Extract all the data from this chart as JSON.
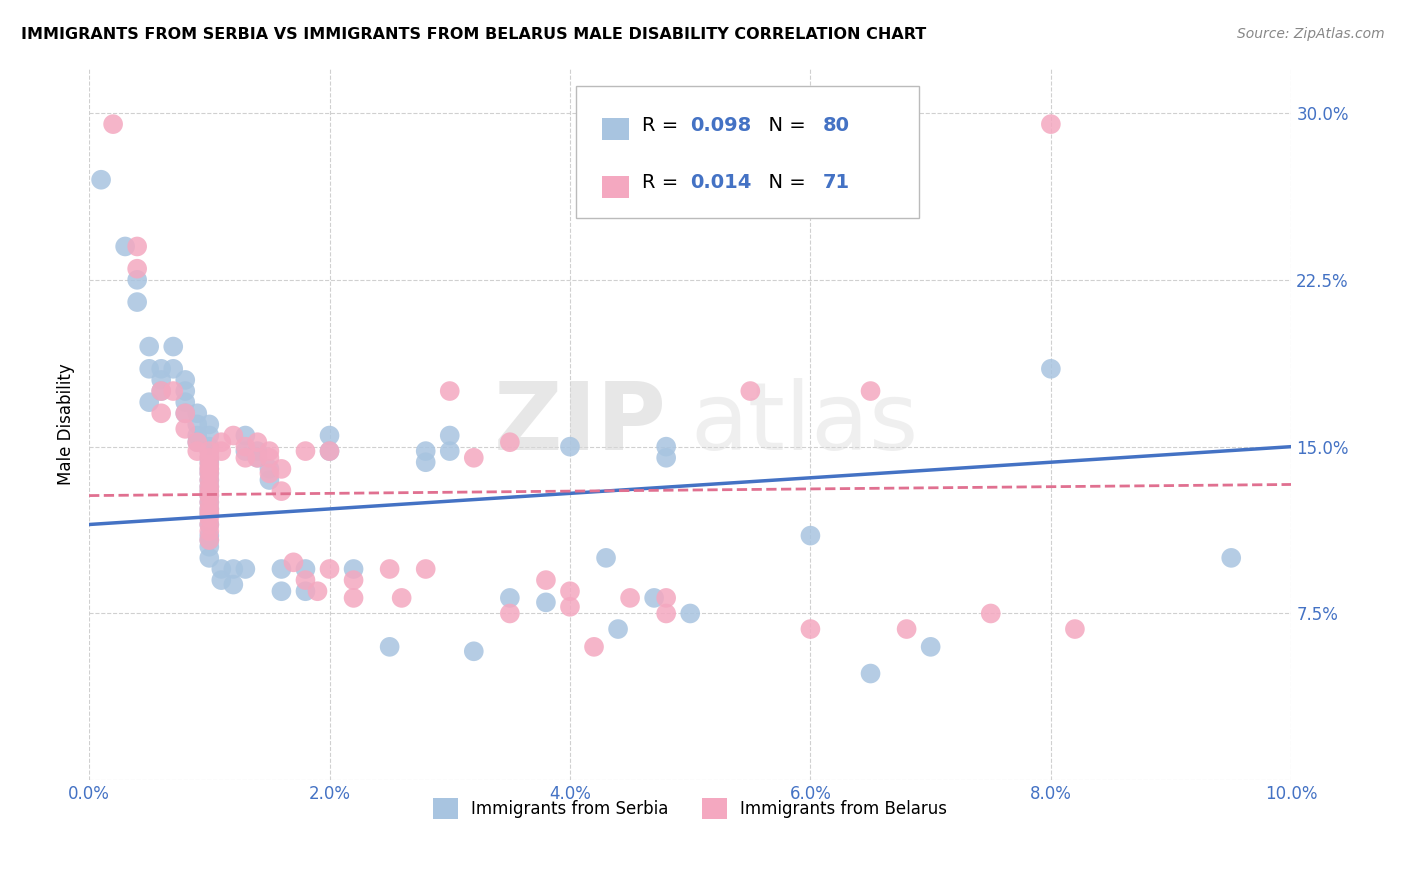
{
  "title": "IMMIGRANTS FROM SERBIA VS IMMIGRANTS FROM BELARUS MALE DISABILITY CORRELATION CHART",
  "source": "Source: ZipAtlas.com",
  "ylabel_label": "Male Disability",
  "legend_labels": [
    "Immigrants from Serbia",
    "Immigrants from Belarus"
  ],
  "serbia_R": "0.098",
  "serbia_N": "80",
  "belarus_R": "0.014",
  "belarus_N": "71",
  "serbia_color": "#a8c4e0",
  "belarus_color": "#f4a8c0",
  "serbia_line_color": "#4472c4",
  "belarus_line_color": "#e07090",
  "annotation_color": "#4472c4",
  "watermark_zip": "ZIP",
  "watermark_atlas": "atlas",
  "xlim": [
    0.0,
    0.1
  ],
  "ylim": [
    0.0,
    0.32
  ],
  "background_color": "#ffffff",
  "grid_color": "#d0d0d0",
  "serbia_points": [
    [
      0.001,
      0.27
    ],
    [
      0.003,
      0.24
    ],
    [
      0.004,
      0.225
    ],
    [
      0.004,
      0.215
    ],
    [
      0.005,
      0.195
    ],
    [
      0.005,
      0.185
    ],
    [
      0.005,
      0.17
    ],
    [
      0.006,
      0.185
    ],
    [
      0.006,
      0.18
    ],
    [
      0.006,
      0.175
    ],
    [
      0.007,
      0.195
    ],
    [
      0.007,
      0.185
    ],
    [
      0.008,
      0.18
    ],
    [
      0.008,
      0.175
    ],
    [
      0.008,
      0.17
    ],
    [
      0.008,
      0.165
    ],
    [
      0.009,
      0.165
    ],
    [
      0.009,
      0.16
    ],
    [
      0.009,
      0.155
    ],
    [
      0.009,
      0.152
    ],
    [
      0.01,
      0.16
    ],
    [
      0.01,
      0.155
    ],
    [
      0.01,
      0.15
    ],
    [
      0.01,
      0.148
    ],
    [
      0.01,
      0.145
    ],
    [
      0.01,
      0.143
    ],
    [
      0.01,
      0.14
    ],
    [
      0.01,
      0.138
    ],
    [
      0.01,
      0.135
    ],
    [
      0.01,
      0.132
    ],
    [
      0.01,
      0.13
    ],
    [
      0.01,
      0.128
    ],
    [
      0.01,
      0.125
    ],
    [
      0.01,
      0.122
    ],
    [
      0.01,
      0.12
    ],
    [
      0.01,
      0.115
    ],
    [
      0.01,
      0.11
    ],
    [
      0.01,
      0.108
    ],
    [
      0.01,
      0.105
    ],
    [
      0.01,
      0.1
    ],
    [
      0.011,
      0.095
    ],
    [
      0.011,
      0.09
    ],
    [
      0.012,
      0.095
    ],
    [
      0.012,
      0.088
    ],
    [
      0.013,
      0.155
    ],
    [
      0.013,
      0.148
    ],
    [
      0.013,
      0.095
    ],
    [
      0.014,
      0.148
    ],
    [
      0.014,
      0.145
    ],
    [
      0.015,
      0.14
    ],
    [
      0.015,
      0.135
    ],
    [
      0.016,
      0.095
    ],
    [
      0.016,
      0.085
    ],
    [
      0.018,
      0.095
    ],
    [
      0.018,
      0.085
    ],
    [
      0.02,
      0.155
    ],
    [
      0.02,
      0.148
    ],
    [
      0.022,
      0.095
    ],
    [
      0.025,
      0.06
    ],
    [
      0.028,
      0.148
    ],
    [
      0.028,
      0.143
    ],
    [
      0.03,
      0.155
    ],
    [
      0.03,
      0.148
    ],
    [
      0.032,
      0.058
    ],
    [
      0.035,
      0.082
    ],
    [
      0.038,
      0.08
    ],
    [
      0.04,
      0.15
    ],
    [
      0.043,
      0.1
    ],
    [
      0.044,
      0.068
    ],
    [
      0.047,
      0.082
    ],
    [
      0.048,
      0.15
    ],
    [
      0.048,
      0.145
    ],
    [
      0.05,
      0.075
    ],
    [
      0.06,
      0.11
    ],
    [
      0.065,
      0.048
    ],
    [
      0.07,
      0.06
    ],
    [
      0.08,
      0.185
    ],
    [
      0.095,
      0.1
    ]
  ],
  "belarus_points": [
    [
      0.002,
      0.295
    ],
    [
      0.004,
      0.24
    ],
    [
      0.004,
      0.23
    ],
    [
      0.006,
      0.175
    ],
    [
      0.006,
      0.165
    ],
    [
      0.007,
      0.175
    ],
    [
      0.008,
      0.165
    ],
    [
      0.008,
      0.158
    ],
    [
      0.009,
      0.152
    ],
    [
      0.009,
      0.148
    ],
    [
      0.01,
      0.148
    ],
    [
      0.01,
      0.145
    ],
    [
      0.01,
      0.142
    ],
    [
      0.01,
      0.14
    ],
    [
      0.01,
      0.138
    ],
    [
      0.01,
      0.135
    ],
    [
      0.01,
      0.132
    ],
    [
      0.01,
      0.13
    ],
    [
      0.01,
      0.128
    ],
    [
      0.01,
      0.125
    ],
    [
      0.01,
      0.122
    ],
    [
      0.01,
      0.12
    ],
    [
      0.01,
      0.118
    ],
    [
      0.01,
      0.115
    ],
    [
      0.01,
      0.112
    ],
    [
      0.01,
      0.108
    ],
    [
      0.011,
      0.152
    ],
    [
      0.011,
      0.148
    ],
    [
      0.012,
      0.155
    ],
    [
      0.013,
      0.15
    ],
    [
      0.013,
      0.145
    ],
    [
      0.014,
      0.152
    ],
    [
      0.014,
      0.145
    ],
    [
      0.015,
      0.148
    ],
    [
      0.015,
      0.145
    ],
    [
      0.015,
      0.138
    ],
    [
      0.016,
      0.14
    ],
    [
      0.016,
      0.13
    ],
    [
      0.017,
      0.098
    ],
    [
      0.018,
      0.148
    ],
    [
      0.018,
      0.09
    ],
    [
      0.019,
      0.085
    ],
    [
      0.02,
      0.148
    ],
    [
      0.02,
      0.095
    ],
    [
      0.022,
      0.09
    ],
    [
      0.022,
      0.082
    ],
    [
      0.025,
      0.095
    ],
    [
      0.026,
      0.082
    ],
    [
      0.028,
      0.095
    ],
    [
      0.03,
      0.175
    ],
    [
      0.032,
      0.145
    ],
    [
      0.035,
      0.152
    ],
    [
      0.035,
      0.075
    ],
    [
      0.038,
      0.09
    ],
    [
      0.04,
      0.085
    ],
    [
      0.04,
      0.078
    ],
    [
      0.042,
      0.06
    ],
    [
      0.045,
      0.082
    ],
    [
      0.048,
      0.082
    ],
    [
      0.048,
      0.075
    ],
    [
      0.055,
      0.175
    ],
    [
      0.06,
      0.068
    ],
    [
      0.065,
      0.175
    ],
    [
      0.068,
      0.068
    ],
    [
      0.075,
      0.075
    ],
    [
      0.08,
      0.295
    ],
    [
      0.082,
      0.068
    ]
  ]
}
